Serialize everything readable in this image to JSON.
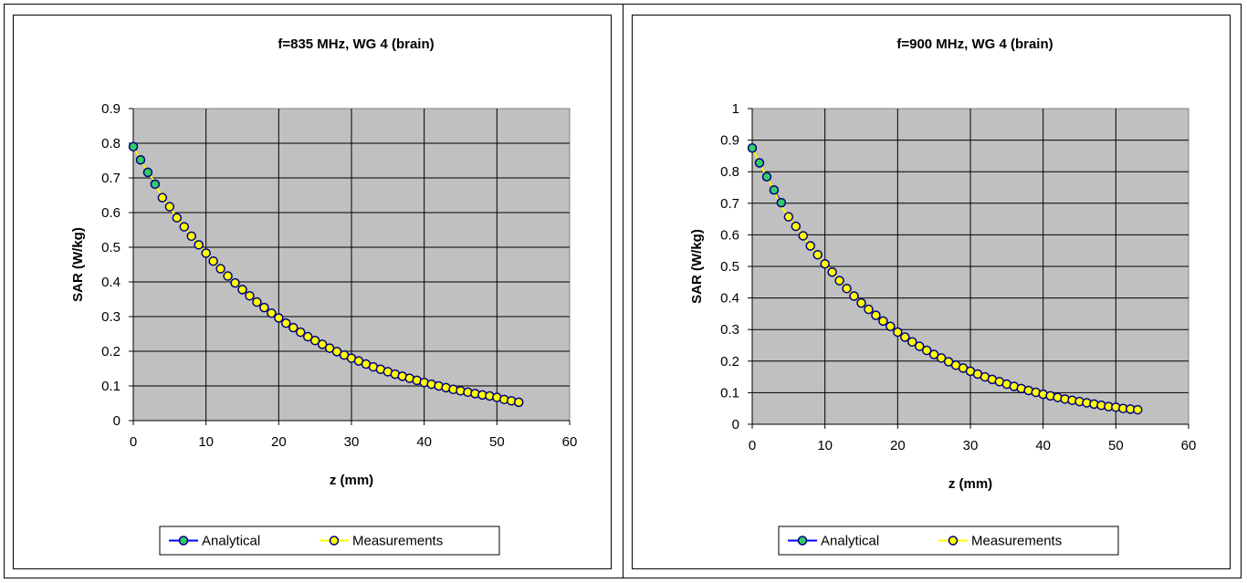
{
  "chart_data": [
    {
      "type": "line",
      "title": "f=835 MHz, WG 4 (brain)",
      "xlabel": "z (mm)",
      "ylabel": "SAR (W/kg)",
      "xlim": [
        0,
        60
      ],
      "ylim": [
        0,
        0.9
      ],
      "xticks": [
        "0",
        "10",
        "20",
        "30",
        "40",
        "50",
        "60"
      ],
      "yticks": [
        "0",
        "0.1",
        "0.2",
        "0.3",
        "0.4",
        "0.5",
        "0.6",
        "0.7",
        "0.8",
        "0.9"
      ],
      "grid": true,
      "legend": "bottom",
      "plot_background": "#c0c0c0",
      "series": [
        {
          "name": "Analytical",
          "line_color": "#0000ff",
          "marker_color": "#33cc66",
          "x": [
            0,
            1,
            2,
            3
          ],
          "y": [
            0.79,
            0.752,
            0.716,
            0.682
          ]
        },
        {
          "name": "Measurements",
          "line_color": "#ffff00",
          "marker_color": "#ffff00",
          "x": [
            0,
            1,
            2,
            3,
            4,
            5,
            6,
            7,
            8,
            9,
            10,
            11,
            12,
            13,
            14,
            15,
            16,
            17,
            18,
            19,
            20,
            21,
            22,
            23,
            24,
            25,
            26,
            27,
            28,
            29,
            30,
            31,
            32,
            33,
            34,
            35,
            36,
            37,
            38,
            39,
            40,
            41,
            42,
            43,
            44,
            45,
            46,
            47,
            48,
            49,
            50,
            51,
            52,
            53
          ],
          "y": [
            0.79,
            0.752,
            0.716,
            0.686,
            0.643,
            0.617,
            0.585,
            0.559,
            0.532,
            0.507,
            0.483,
            0.46,
            0.438,
            0.417,
            0.397,
            0.378,
            0.36,
            0.342,
            0.326,
            0.31,
            0.296,
            0.281,
            0.268,
            0.255,
            0.242,
            0.231,
            0.22,
            0.209,
            0.199,
            0.189,
            0.18,
            0.172,
            0.163,
            0.155,
            0.148,
            0.141,
            0.134,
            0.128,
            0.122,
            0.116,
            0.11,
            0.105,
            0.1,
            0.095,
            0.09,
            0.086,
            0.082,
            0.078,
            0.074,
            0.071,
            0.067,
            0.061,
            0.057,
            0.053
          ]
        }
      ]
    },
    {
      "type": "line",
      "title": "f=900 MHz, WG 4 (brain)",
      "xlabel": "z (mm)",
      "ylabel": "SAR (W/kg)",
      "xlim": [
        0,
        60
      ],
      "ylim": [
        0,
        1
      ],
      "xticks": [
        "0",
        "10",
        "20",
        "30",
        "40",
        "50",
        "60"
      ],
      "yticks": [
        "0",
        "0.1",
        "0.2",
        "0.3",
        "0.4",
        "0.5",
        "0.6",
        "0.7",
        "0.8",
        "0.9",
        "1"
      ],
      "grid": true,
      "legend": "bottom",
      "plot_background": "#c0c0c0",
      "series": [
        {
          "name": "Analytical",
          "line_color": "#0000ff",
          "marker_color": "#33cc66",
          "x": [
            0,
            1,
            2,
            3,
            4
          ],
          "y": [
            0.875,
            0.828,
            0.784,
            0.742,
            0.702
          ]
        },
        {
          "name": "Measurements",
          "line_color": "#ffff00",
          "marker_color": "#ffff00",
          "x": [
            0,
            1,
            2,
            3,
            4,
            5,
            6,
            7,
            8,
            9,
            10,
            11,
            12,
            13,
            14,
            15,
            16,
            17,
            18,
            19,
            20,
            21,
            22,
            23,
            24,
            25,
            26,
            27,
            28,
            29,
            30,
            31,
            32,
            33,
            34,
            35,
            36,
            37,
            38,
            39,
            40,
            41,
            42,
            43,
            44,
            45,
            46,
            47,
            48,
            49,
            50,
            51,
            52,
            53
          ],
          "y": [
            0.875,
            0.828,
            0.784,
            0.742,
            0.69,
            0.657,
            0.627,
            0.597,
            0.565,
            0.537,
            0.508,
            0.482,
            0.455,
            0.43,
            0.406,
            0.384,
            0.364,
            0.345,
            0.327,
            0.31,
            0.292,
            0.276,
            0.261,
            0.247,
            0.234,
            0.221,
            0.21,
            0.198,
            0.187,
            0.178,
            0.168,
            0.159,
            0.15,
            0.142,
            0.135,
            0.127,
            0.12,
            0.113,
            0.107,
            0.101,
            0.095,
            0.09,
            0.085,
            0.08,
            0.076,
            0.072,
            0.068,
            0.064,
            0.06,
            0.056,
            0.054,
            0.05,
            0.048,
            0.046
          ]
        }
      ]
    }
  ]
}
